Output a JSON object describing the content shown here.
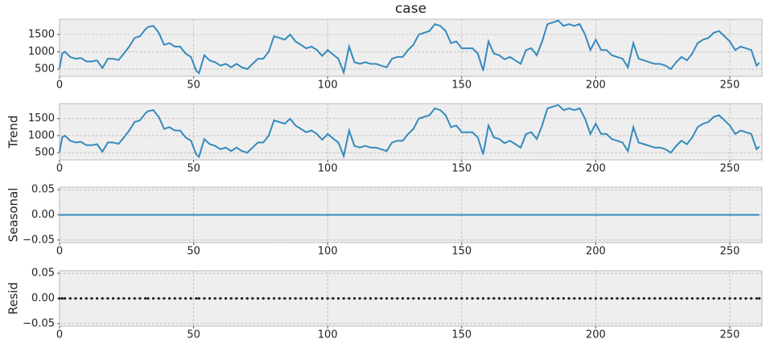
{
  "chart_data": [
    {
      "type": "line",
      "title": "case",
      "color": "#348ABD",
      "grid": true,
      "xlim": [
        0,
        262
      ],
      "xticks": [
        0,
        50,
        100,
        150,
        200,
        250
      ],
      "ylim": [
        290,
        1940
      ],
      "yticks": [
        500,
        1000,
        1500
      ],
      "x": [
        0,
        1,
        2,
        4,
        6,
        8,
        10,
        12,
        14,
        16,
        18,
        20,
        22,
        24,
        26,
        28,
        30,
        32,
        33,
        35,
        37,
        39,
        41,
        43,
        45,
        47,
        49,
        51,
        52,
        54,
        56,
        58,
        60,
        62,
        64,
        66,
        68,
        70,
        72,
        74,
        76,
        78,
        80,
        82,
        84,
        86,
        88,
        90,
        92,
        94,
        96,
        98,
        100,
        102,
        104,
        106,
        108,
        110,
        112,
        114,
        116,
        118,
        120,
        122,
        124,
        126,
        128,
        130,
        132,
        134,
        136,
        138,
        140,
        142,
        144,
        146,
        148,
        150,
        152,
        154,
        156,
        158,
        160,
        162,
        164,
        166,
        168,
        170,
        172,
        174,
        176,
        178,
        180,
        182,
        184,
        186,
        188,
        190,
        192,
        194,
        196,
        198,
        200,
        202,
        204,
        206,
        208,
        210,
        212,
        214,
        216,
        218,
        220,
        222,
        224,
        226,
        228,
        230,
        232,
        234,
        236,
        238,
        240,
        242,
        244,
        246,
        248,
        250,
        252,
        254,
        256,
        258,
        260,
        261
      ],
      "values": [
        520,
        950,
        1000,
        850,
        800,
        820,
        720,
        720,
        750,
        530,
        800,
        800,
        760,
        950,
        1150,
        1400,
        1450,
        1650,
        1720,
        1750,
        1550,
        1200,
        1250,
        1150,
        1150,
        950,
        850,
        450,
        380,
        900,
        750,
        700,
        600,
        650,
        550,
        650,
        550,
        500,
        650,
        800,
        800,
        1000,
        1450,
        1400,
        1350,
        1500,
        1300,
        1200,
        1100,
        1150,
        1050,
        880,
        1050,
        920,
        800,
        400,
        1150,
        700,
        650,
        700,
        650,
        650,
        600,
        550,
        800,
        850,
        850,
        1050,
        1200,
        1500,
        1550,
        1600,
        1800,
        1750,
        1600,
        1250,
        1300,
        1100,
        1100,
        1100,
        950,
        450,
        1300,
        950,
        900,
        780,
        850,
        750,
        650,
        1050,
        1100,
        900,
        1300,
        1800,
        1850,
        1900,
        1750,
        1800,
        1750,
        1800,
        1500,
        1050,
        1350,
        1050,
        1050,
        900,
        850,
        800,
        550,
        1250,
        800,
        750,
        700,
        650,
        650,
        600,
        500,
        700,
        850,
        750,
        950,
        1250,
        1350,
        1400,
        1550,
        1600,
        1450,
        1300,
        1050,
        1150,
        1100,
        1050,
        600,
        680
      ]
    },
    {
      "type": "line",
      "ylabel": "Trend",
      "color": "#348ABD",
      "grid": true,
      "xlim": [
        0,
        262
      ],
      "xticks": [
        0,
        50,
        100,
        150,
        200,
        250
      ],
      "ylim": [
        290,
        1940
      ],
      "yticks": [
        500,
        1000,
        1500
      ],
      "x": [
        0,
        1,
        2,
        4,
        6,
        8,
        10,
        12,
        14,
        16,
        18,
        20,
        22,
        24,
        26,
        28,
        30,
        32,
        33,
        35,
        37,
        39,
        41,
        43,
        45,
        47,
        49,
        51,
        52,
        54,
        56,
        58,
        60,
        62,
        64,
        66,
        68,
        70,
        72,
        74,
        76,
        78,
        80,
        82,
        84,
        86,
        88,
        90,
        92,
        94,
        96,
        98,
        100,
        102,
        104,
        106,
        108,
        110,
        112,
        114,
        116,
        118,
        120,
        122,
        124,
        126,
        128,
        130,
        132,
        134,
        136,
        138,
        140,
        142,
        144,
        146,
        148,
        150,
        152,
        154,
        156,
        158,
        160,
        162,
        164,
        166,
        168,
        170,
        172,
        174,
        176,
        178,
        180,
        182,
        184,
        186,
        188,
        190,
        192,
        194,
        196,
        198,
        200,
        202,
        204,
        206,
        208,
        210,
        212,
        214,
        216,
        218,
        220,
        222,
        224,
        226,
        228,
        230,
        232,
        234,
        236,
        238,
        240,
        242,
        244,
        246,
        248,
        250,
        252,
        254,
        256,
        258,
        260,
        261
      ],
      "values": [
        520,
        950,
        1000,
        850,
        800,
        820,
        720,
        720,
        750,
        530,
        800,
        800,
        760,
        950,
        1150,
        1400,
        1450,
        1650,
        1720,
        1750,
        1550,
        1200,
        1250,
        1150,
        1150,
        950,
        850,
        450,
        380,
        900,
        750,
        700,
        600,
        650,
        550,
        650,
        550,
        500,
        650,
        800,
        800,
        1000,
        1450,
        1400,
        1350,
        1500,
        1300,
        1200,
        1100,
        1150,
        1050,
        880,
        1050,
        920,
        800,
        400,
        1150,
        700,
        650,
        700,
        650,
        650,
        600,
        550,
        800,
        850,
        850,
        1050,
        1200,
        1500,
        1550,
        1600,
        1800,
        1750,
        1600,
        1250,
        1300,
        1100,
        1100,
        1100,
        950,
        450,
        1300,
        950,
        900,
        780,
        850,
        750,
        650,
        1050,
        1100,
        900,
        1300,
        1800,
        1850,
        1900,
        1750,
        1800,
        1750,
        1800,
        1500,
        1050,
        1350,
        1050,
        1050,
        900,
        850,
        800,
        550,
        1250,
        800,
        750,
        700,
        650,
        650,
        600,
        500,
        700,
        850,
        750,
        950,
        1250,
        1350,
        1400,
        1550,
        1600,
        1450,
        1300,
        1050,
        1150,
        1100,
        1050,
        600,
        680
      ]
    },
    {
      "type": "line",
      "ylabel": "Seasonal",
      "color": "#348ABD",
      "grid": true,
      "xlim": [
        0,
        262
      ],
      "xticks": [
        0,
        50,
        100,
        150,
        200,
        250
      ],
      "ylim": [
        -0.055,
        0.055
      ],
      "yticks": [
        {
          "value": -0.05,
          "label": "−0.05"
        },
        {
          "value": 0,
          "label": "0.00"
        },
        {
          "value": 0.05,
          "label": "0.05"
        }
      ],
      "x": [
        0,
        1,
        2,
        4,
        6,
        8,
        10,
        12,
        14,
        16,
        18,
        20,
        22,
        24,
        26,
        28,
        30,
        32,
        33,
        35,
        37,
        39,
        41,
        43,
        45,
        47,
        49,
        51,
        52,
        54,
        56,
        58,
        60,
        62,
        64,
        66,
        68,
        70,
        72,
        74,
        76,
        78,
        80,
        82,
        84,
        86,
        88,
        90,
        92,
        94,
        96,
        98,
        100,
        102,
        104,
        106,
        108,
        110,
        112,
        114,
        116,
        118,
        120,
        122,
        124,
        126,
        128,
        130,
        132,
        134,
        136,
        138,
        140,
        142,
        144,
        146,
        148,
        150,
        152,
        154,
        156,
        158,
        160,
        162,
        164,
        166,
        168,
        170,
        172,
        174,
        176,
        178,
        180,
        182,
        184,
        186,
        188,
        190,
        192,
        194,
        196,
        198,
        200,
        202,
        204,
        206,
        208,
        210,
        212,
        214,
        216,
        218,
        220,
        222,
        224,
        226,
        228,
        230,
        232,
        234,
        236,
        238,
        240,
        242,
        244,
        246,
        248,
        250,
        252,
        254,
        256,
        258,
        260,
        261
      ],
      "values": [
        0,
        0,
        0,
        0,
        0,
        0,
        0,
        0,
        0,
        0,
        0,
        0,
        0,
        0,
        0,
        0,
        0,
        0,
        0,
        0,
        0,
        0,
        0,
        0,
        0,
        0,
        0,
        0,
        0,
        0,
        0,
        0,
        0,
        0,
        0,
        0,
        0,
        0,
        0,
        0,
        0,
        0,
        0,
        0,
        0,
        0,
        0,
        0,
        0,
        0,
        0,
        0,
        0,
        0,
        0,
        0,
        0,
        0,
        0,
        0,
        0,
        0,
        0,
        0,
        0,
        0,
        0,
        0,
        0,
        0,
        0,
        0,
        0,
        0,
        0,
        0,
        0,
        0,
        0,
        0,
        0,
        0,
        0,
        0,
        0,
        0,
        0,
        0,
        0,
        0,
        0,
        0,
        0,
        0,
        0,
        0,
        0,
        0,
        0,
        0,
        0,
        0,
        0,
        0,
        0,
        0,
        0,
        0,
        0,
        0,
        0,
        0,
        0,
        0,
        0,
        0,
        0,
        0,
        0,
        0,
        0,
        0,
        0,
        0,
        0,
        0,
        0,
        0,
        0,
        0,
        0,
        0,
        0,
        0
      ]
    },
    {
      "type": "scatter",
      "ylabel": "Resid",
      "color": "#222222",
      "grid": true,
      "xlim": [
        0,
        262
      ],
      "xticks": [
        0,
        50,
        100,
        150,
        200,
        250
      ],
      "ylim": [
        -0.055,
        0.055
      ],
      "yticks": [
        {
          "value": -0.05,
          "label": "−0.05"
        },
        {
          "value": 0,
          "label": "0.00"
        },
        {
          "value": 0.05,
          "label": "0.05"
        }
      ],
      "x": [
        0,
        1,
        2,
        4,
        6,
        8,
        10,
        12,
        14,
        16,
        18,
        20,
        22,
        24,
        26,
        28,
        30,
        32,
        33,
        35,
        37,
        39,
        41,
        43,
        45,
        47,
        49,
        51,
        52,
        54,
        56,
        58,
        60,
        62,
        64,
        66,
        68,
        70,
        72,
        74,
        76,
        78,
        80,
        82,
        84,
        86,
        88,
        90,
        92,
        94,
        96,
        98,
        100,
        102,
        104,
        106,
        108,
        110,
        112,
        114,
        116,
        118,
        120,
        122,
        124,
        126,
        128,
        130,
        132,
        134,
        136,
        138,
        140,
        142,
        144,
        146,
        148,
        150,
        152,
        154,
        156,
        158,
        160,
        162,
        164,
        166,
        168,
        170,
        172,
        174,
        176,
        178,
        180,
        182,
        184,
        186,
        188,
        190,
        192,
        194,
        196,
        198,
        200,
        202,
        204,
        206,
        208,
        210,
        212,
        214,
        216,
        218,
        220,
        222,
        224,
        226,
        228,
        230,
        232,
        234,
        236,
        238,
        240,
        242,
        244,
        246,
        248,
        250,
        252,
        254,
        256,
        258,
        260,
        261
      ],
      "values": [
        0,
        0,
        0,
        0,
        0,
        0,
        0,
        0,
        0,
        0,
        0,
        0,
        0,
        0,
        0,
        0,
        0,
        0,
        0,
        0,
        0,
        0,
        0,
        0,
        0,
        0,
        0,
        0,
        0,
        0,
        0,
        0,
        0,
        0,
        0,
        0,
        0,
        0,
        0,
        0,
        0,
        0,
        0,
        0,
        0,
        0,
        0,
        0,
        0,
        0,
        0,
        0,
        0,
        0,
        0,
        0,
        0,
        0,
        0,
        0,
        0,
        0,
        0,
        0,
        0,
        0,
        0,
        0,
        0,
        0,
        0,
        0,
        0,
        0,
        0,
        0,
        0,
        0,
        0,
        0,
        0,
        0,
        0,
        0,
        0,
        0,
        0,
        0,
        0,
        0,
        0,
        0,
        0,
        0,
        0,
        0,
        0,
        0,
        0,
        0,
        0,
        0,
        0,
        0,
        0,
        0,
        0,
        0,
        0,
        0,
        0,
        0,
        0,
        0,
        0,
        0,
        0,
        0,
        0,
        0,
        0,
        0,
        0,
        0,
        0,
        0,
        0,
        0,
        0,
        0,
        0,
        0,
        0,
        0
      ]
    }
  ]
}
